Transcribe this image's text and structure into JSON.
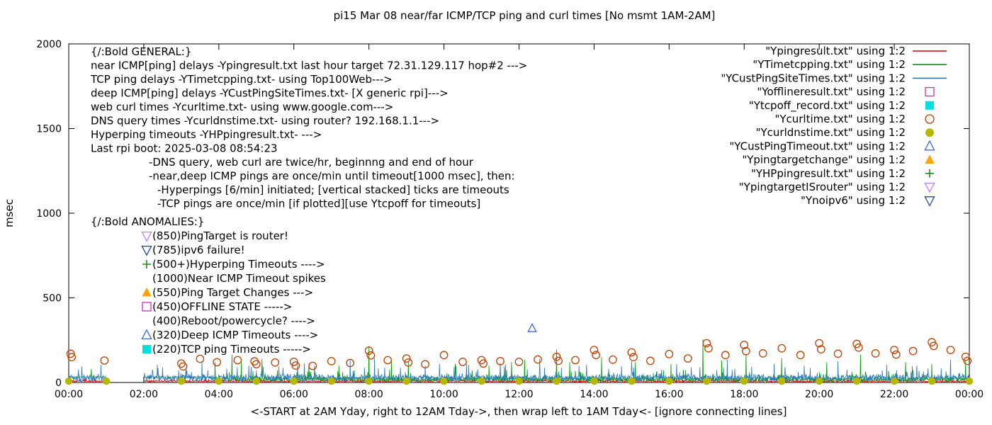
{
  "title": "pi15 Mar 08  near/far ICMP/TCP ping and curl times [No msmt 1AM-2AM]",
  "ylabel": "msec",
  "xlabel": "<-START at 2AM Yday, right to 12AM Tday->, then wrap left to 1AM Tday<- [ignore connecting lines]",
  "colors": {
    "foreground": "#000000",
    "background": "#ffffff"
  },
  "chart_data": {
    "type": "line",
    "xlim": [
      0,
      24
    ],
    "ylim": [
      0,
      2000
    ],
    "yticks": [
      0,
      500,
      1000,
      1500,
      2000
    ],
    "xtick_hours": [
      0,
      2,
      4,
      6,
      8,
      10,
      12,
      14,
      16,
      18,
      20,
      22,
      24
    ],
    "xtick_labels": [
      "00:00",
      "02:00",
      "04:00",
      "06:00",
      "08:00",
      "10:00",
      "12:00",
      "14:00",
      "16:00",
      "18:00",
      "20:00",
      "22:00",
      "00:00"
    ],
    "no_measurement_gap_hours": [
      1,
      2
    ],
    "legend_position": "top-right-inside",
    "grid": false,
    "series": [
      {
        "name": "Ypingresult",
        "legend": "\"Ypingresult.txt\" using 1:2",
        "style": "line",
        "color": "#e00000",
        "baseline": 7,
        "noise": 9,
        "spikes": [
          [
            6.3,
            40
          ],
          [
            12.7,
            38
          ],
          [
            18.4,
            45
          ]
        ]
      },
      {
        "name": "YTimetcpping",
        "legend": "\"YTimetcpping.txt\" using 1:2",
        "style": "line",
        "color": "#00a000",
        "baseline": 18,
        "noise": 28,
        "flat_until": 3.8,
        "flat_value": 33,
        "spikes": [
          [
            0.6,
            80
          ],
          [
            3.9,
            120
          ],
          [
            4.35,
            165
          ],
          [
            4.6,
            120
          ],
          [
            5.15,
            140
          ],
          [
            6.4,
            110
          ],
          [
            7.2,
            100
          ],
          [
            8.0,
            215
          ],
          [
            8.6,
            130
          ],
          [
            9.05,
            120
          ],
          [
            10.3,
            110
          ],
          [
            11.2,
            100
          ],
          [
            11.8,
            120
          ],
          [
            12.15,
            135
          ],
          [
            13.0,
            195
          ],
          [
            13.35,
            120
          ],
          [
            14.2,
            150
          ],
          [
            15.1,
            120
          ],
          [
            16.05,
            110
          ],
          [
            16.9,
            255
          ],
          [
            17.4,
            130
          ],
          [
            18.05,
            170
          ],
          [
            19.0,
            145
          ],
          [
            20.2,
            120
          ],
          [
            21.1,
            165
          ],
          [
            22.3,
            120
          ],
          [
            23.0,
            110
          ],
          [
            23.9,
            130
          ]
        ]
      },
      {
        "name": "YCustPingSiteTimes",
        "legend": "\"YCustPingSiteTimes.txt\" using 1:2",
        "style": "line",
        "color": "#2e7ab8",
        "baseline": 30,
        "noise": 38,
        "spikes": [
          [
            0.35,
            95
          ],
          [
            2.5,
            90
          ],
          [
            3.55,
            125
          ],
          [
            4.8,
            100
          ],
          [
            5.6,
            95
          ],
          [
            6.1,
            110
          ],
          [
            7.5,
            135
          ],
          [
            8.15,
            145
          ],
          [
            9.5,
            100
          ],
          [
            10.6,
            110
          ],
          [
            11.5,
            115
          ],
          [
            12.55,
            140
          ],
          [
            13.8,
            105
          ],
          [
            15.0,
            125
          ],
          [
            16.2,
            110
          ],
          [
            17.55,
            135
          ],
          [
            18.8,
            110
          ],
          [
            19.6,
            100
          ],
          [
            20.5,
            125
          ],
          [
            21.8,
            105
          ],
          [
            22.6,
            100
          ],
          [
            23.5,
            135
          ]
        ]
      },
      {
        "name": "Yofflineresult",
        "legend": "\"Yofflineresult.txt\" using 1:2",
        "style": "square-open",
        "color": "#d02ad0",
        "points": []
      },
      {
        "name": "Ytcpoff_record",
        "legend": "\"Ytcpoff_record.txt\" using 1:2",
        "style": "square-filled",
        "color": "#00e0e0",
        "points": []
      },
      {
        "name": "Ycurltime",
        "legend": "\"Ycurltime.txt\" using 1:2",
        "style": "circle-open",
        "color": "#c04000",
        "points": [
          [
            0.05,
            170
          ],
          [
            0.08,
            150
          ],
          [
            0.95,
            130
          ],
          [
            3.0,
            112
          ],
          [
            3.05,
            95
          ],
          [
            3.5,
            140
          ],
          [
            3.95,
            120
          ],
          [
            4.5,
            132
          ],
          [
            4.95,
            125
          ],
          [
            5.0,
            108
          ],
          [
            5.5,
            118
          ],
          [
            6.0,
            122
          ],
          [
            6.05,
            100
          ],
          [
            6.5,
            98
          ],
          [
            7.0,
            126
          ],
          [
            7.5,
            115
          ],
          [
            8.0,
            188
          ],
          [
            8.05,
            160
          ],
          [
            8.5,
            132
          ],
          [
            9.0,
            142
          ],
          [
            9.05,
            118
          ],
          [
            9.5,
            108
          ],
          [
            10.0,
            162
          ],
          [
            10.5,
            122
          ],
          [
            11.0,
            132
          ],
          [
            11.05,
            112
          ],
          [
            11.5,
            126
          ],
          [
            12.0,
            122
          ],
          [
            12.5,
            136
          ],
          [
            13.0,
            152
          ],
          [
            13.05,
            128
          ],
          [
            13.5,
            132
          ],
          [
            14.0,
            192
          ],
          [
            14.05,
            162
          ],
          [
            14.5,
            135
          ],
          [
            15.0,
            178
          ],
          [
            15.05,
            150
          ],
          [
            15.5,
            128
          ],
          [
            16.0,
            168
          ],
          [
            16.5,
            142
          ],
          [
            17.0,
            232
          ],
          [
            17.05,
            202
          ],
          [
            17.5,
            162
          ],
          [
            18.0,
            222
          ],
          [
            18.05,
            185
          ],
          [
            18.5,
            172
          ],
          [
            19.0,
            202
          ],
          [
            19.5,
            162
          ],
          [
            20.0,
            232
          ],
          [
            20.05,
            196
          ],
          [
            20.5,
            170
          ],
          [
            21.0,
            228
          ],
          [
            21.05,
            206
          ],
          [
            21.5,
            172
          ],
          [
            22.0,
            192
          ],
          [
            22.05,
            165
          ],
          [
            22.5,
            186
          ],
          [
            23.0,
            238
          ],
          [
            23.05,
            216
          ],
          [
            23.5,
            192
          ],
          [
            23.9,
            152
          ],
          [
            23.95,
            128
          ]
        ]
      },
      {
        "name": "Ycurldnstime",
        "legend": "\"Ycurldnstime.txt\" using 1:2",
        "style": "circle-filled",
        "color": "#b5b800",
        "points": [
          [
            0,
            8
          ],
          [
            1,
            8
          ],
          [
            3,
            8
          ],
          [
            4,
            8
          ],
          [
            5,
            8
          ],
          [
            6,
            8
          ],
          [
            7,
            8
          ],
          [
            8,
            8
          ],
          [
            9,
            8
          ],
          [
            10,
            8
          ],
          [
            11,
            8
          ],
          [
            12,
            8
          ],
          [
            13,
            8
          ],
          [
            14,
            8
          ],
          [
            15,
            8
          ],
          [
            16,
            8
          ],
          [
            17,
            8
          ],
          [
            18,
            8
          ],
          [
            19,
            8
          ],
          [
            20,
            8
          ],
          [
            21,
            8
          ],
          [
            22,
            8
          ],
          [
            23,
            8
          ],
          [
            24,
            8
          ]
        ]
      },
      {
        "name": "YCustPingTimeout",
        "legend": "\"YCustPingTimeout.txt\" using 1:2",
        "style": "triangle-open",
        "color": "#4169e1",
        "points": [
          [
            12.35,
            320
          ]
        ]
      },
      {
        "name": "Ypingtargetchange",
        "legend": "\"Ypingtargetchange\" using 1:2",
        "style": "triangle-filled",
        "color": "#ffa500",
        "points": []
      },
      {
        "name": "YHPpingresult",
        "legend": "\"YHPpingresult.txt\" using 1:2",
        "style": "plus",
        "color": "#228b22",
        "points": []
      },
      {
        "name": "YpingtargetISrouter",
        "legend": "\"YpingtargetISrouter\" using 1:2",
        "style": "nabla-open",
        "color": "#c080ff",
        "points": []
      },
      {
        "name": "Ynoipv6",
        "legend": "\"Ynoipv6\" using 1:2",
        "style": "nabla-open",
        "color": "#2244aa",
        "points": []
      }
    ]
  },
  "annotations": {
    "general": {
      "header": "{/:Bold GENERAL:}",
      "lines": [
        {
          "indent": 0,
          "text": "near ICMP[ping] delays -Ypingresult.txt last hour target 72.31.129.117 hop#2 --->"
        },
        {
          "indent": 0,
          "text": "TCP ping delays -YTimetcpping.txt- using Top100Web--->"
        },
        {
          "indent": 0,
          "text": "deep ICMP[ping] delays -YCustPingSiteTimes.txt- [X generic rpi]--->"
        },
        {
          "indent": 0,
          "text": "web curl times -Ycurltime.txt- using www.google.com--->"
        },
        {
          "indent": 0,
          "text": "DNS query times -Ycurldnstime.txt- using router? 192.168.1.1--->"
        },
        {
          "indent": 0,
          "text": "Hyperping timeouts -YHPpingresult.txt- --->"
        },
        {
          "indent": 0,
          "text": "Last rpi boot: 2025-03-08 08:54:23"
        },
        {
          "indent": 1,
          "text": "-DNS query, web curl are twice/hr, beginnng and end of hour"
        },
        {
          "indent": 1,
          "text": "-near,deep ICMP pings are once/min until timeout[1000 msec], then:"
        },
        {
          "indent": 2,
          "text": "-Hyperpings [6/min] initiated; [vertical stacked] ticks are timeouts"
        },
        {
          "indent": 2,
          "text": "-TCP pings are once/min [if plotted][use Ytcpoff for timeouts]"
        }
      ]
    },
    "anomalies": {
      "header": "{/:Bold ANOMALIES:}",
      "lines": [
        {
          "marker": {
            "shape": "nabla-open",
            "color": "#c080ff"
          },
          "text": "(850)PingTarget is router!"
        },
        {
          "marker": {
            "shape": "nabla-open",
            "color": "#2244aa"
          },
          "text": "(785)ipv6 failure!"
        },
        {
          "marker": {
            "shape": "plus",
            "color": "#228b22"
          },
          "text": "(500+)Hyperping Timeouts ---->"
        },
        {
          "marker": null,
          "text": "(1000)Near ICMP Timeout spikes"
        },
        {
          "marker": {
            "shape": "triangle-filled",
            "color": "#ffa500"
          },
          "text": "(550)Ping Target Changes --->"
        },
        {
          "marker": {
            "shape": "square-open",
            "color": "#d02ad0"
          },
          "text": "(450)OFFLINE STATE ----->"
        },
        {
          "marker": null,
          "text": "(400)Reboot/powercycle? ---->"
        },
        {
          "marker": {
            "shape": "triangle-open",
            "color": "#4169e1"
          },
          "text": "(320)Deep ICMP Timeouts ---->"
        },
        {
          "marker": {
            "shape": "square-filled",
            "color": "#00e0e0"
          },
          "text": "(220)TCP ping Timeouts ----->"
        }
      ]
    }
  }
}
